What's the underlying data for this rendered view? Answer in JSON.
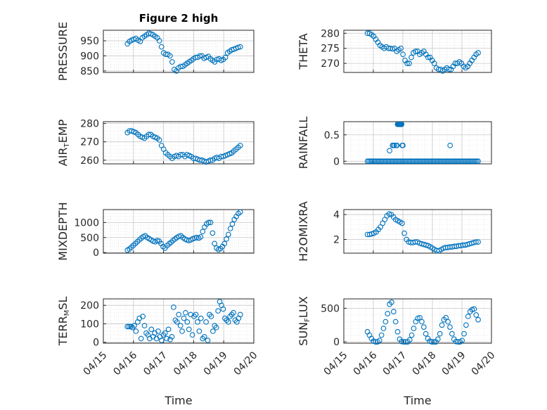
{
  "figure_title": "Figure 2 high",
  "colors": {
    "marker": "#0072bd",
    "axis": "#262626",
    "grid": "#c8c8c8",
    "background": "#ffffff"
  },
  "chart_data": [
    {
      "type": "scatter",
      "id": "pressure",
      "title": "Figure 2 high",
      "ylabel_parts": [
        "PRESSURE"
      ],
      "xlim": [
        "04/15",
        "04/20"
      ],
      "ylim": [
        845,
        985
      ],
      "yticks": [
        850,
        900,
        950
      ],
      "show_xticks": false,
      "xlabel": "",
      "grid": true,
      "x_start": 15.8,
      "x_end": 19.55,
      "y": [
        940,
        948,
        952,
        955,
        958,
        952,
        948,
        960,
        965,
        970,
        975,
        973,
        970,
        965,
        960,
        950,
        930,
        910,
        905,
        905,
        900,
        880,
        855,
        850,
        860,
        865,
        865,
        870,
        875,
        880,
        885,
        890,
        895,
        895,
        900,
        900,
        892,
        895,
        898,
        890,
        885,
        880,
        888,
        890,
        885,
        888,
        895,
        910,
        915,
        920,
        922,
        925,
        928,
        930
      ]
    },
    {
      "type": "scatter",
      "id": "theta",
      "title": "",
      "ylabel_parts": [
        "THETA"
      ],
      "xlim": [
        "04/15",
        "04/20"
      ],
      "ylim": [
        267,
        281
      ],
      "yticks": [
        270,
        275,
        280
      ],
      "show_xticks": false,
      "xlabel": "",
      "grid": true,
      "x_start": 15.8,
      "x_end": 19.55,
      "y": [
        280,
        280,
        279.5,
        279,
        278,
        277,
        276,
        275.5,
        275,
        275.5,
        275,
        275,
        274.8,
        275,
        274,
        274.5,
        275,
        273,
        271,
        270,
        270,
        272,
        273.5,
        274,
        274,
        273,
        273.5,
        274,
        273,
        272,
        272,
        271,
        270,
        268.5,
        268,
        268,
        267.5,
        268,
        268.5,
        268,
        268,
        269,
        270,
        270,
        270.5,
        270,
        269,
        268.5,
        269,
        270,
        271,
        272,
        273,
        273.5
      ]
    },
    {
      "type": "scatter",
      "id": "air_temp",
      "title": "",
      "ylabel_parts": [
        "AIR",
        "T",
        "EMP"
      ],
      "xlim": [
        "04/15",
        "04/20"
      ],
      "ylim": [
        258,
        281
      ],
      "yticks": [
        260,
        270,
        280
      ],
      "show_xticks": false,
      "xlabel": "",
      "grid": true,
      "x_start": 15.8,
      "x_end": 19.55,
      "y": [
        275,
        276,
        276,
        275.5,
        275,
        274,
        273,
        272.5,
        272,
        273,
        274,
        274,
        273,
        272.5,
        272,
        271,
        268,
        266,
        264,
        263,
        262,
        261,
        262,
        262.5,
        262,
        263,
        263,
        262,
        263,
        262.5,
        262,
        261,
        261,
        260.5,
        260,
        260,
        259.5,
        259,
        259.5,
        260,
        260,
        261,
        261.5,
        261,
        262,
        262,
        262.5,
        263,
        263.5,
        264,
        265,
        266,
        267,
        268
      ]
    },
    {
      "type": "scatter",
      "id": "rainfall",
      "title": "",
      "ylabel_parts": [
        "RAINFALL"
      ],
      "xlim": [
        "04/15",
        "04/20"
      ],
      "ylim": [
        -0.05,
        0.75
      ],
      "yticks": [
        0,
        0.5
      ],
      "show_xticks": false,
      "xlabel": "",
      "grid": true,
      "x_start": 15.8,
      "x_end": 19.55,
      "y": [
        0,
        0,
        0,
        0,
        0,
        0,
        0,
        0,
        0,
        0,
        0,
        0,
        0,
        0,
        0,
        0,
        0,
        0,
        0,
        0,
        0,
        0,
        0,
        0,
        0,
        0,
        0,
        0,
        0,
        0,
        0,
        0,
        0,
        0,
        0,
        0,
        0,
        0,
        0,
        0,
        0,
        0,
        0,
        0,
        0,
        0,
        0,
        0,
        0,
        0,
        0,
        0,
        0,
        0,
        0,
        0,
        0,
        0,
        0,
        0,
        0,
        0,
        0,
        0,
        0,
        0,
        0,
        0,
        0,
        0,
        0,
        0,
        0,
        0,
        0,
        0,
        0,
        0,
        0,
        0
      ],
      "extra_points": [
        [
          16.55,
          0.2
        ],
        [
          16.65,
          0.3
        ],
        [
          16.68,
          0.3
        ],
        [
          16.72,
          0.3
        ],
        [
          16.82,
          0.7
        ],
        [
          16.84,
          0.7
        ],
        [
          16.86,
          0.7
        ],
        [
          16.88,
          0.7
        ],
        [
          16.9,
          0.7
        ],
        [
          16.92,
          0.7
        ],
        [
          16.94,
          0.7
        ],
        [
          16.96,
          0.7
        ],
        [
          16.78,
          0.3
        ],
        [
          16.8,
          0.3
        ],
        [
          16.98,
          0.3
        ],
        [
          17.0,
          0.3
        ],
        [
          18.6,
          0.3
        ]
      ]
    },
    {
      "type": "scatter",
      "id": "mixdepth",
      "title": "",
      "ylabel_parts": [
        "MIXDEPTH"
      ],
      "xlim": [
        "04/15",
        "04/20"
      ],
      "ylim": [
        -20,
        1430
      ],
      "yticks": [
        0,
        500,
        1000
      ],
      "show_xticks": false,
      "xlabel": "",
      "grid": true,
      "x_start": 15.8,
      "x_end": 19.55,
      "y": [
        80,
        120,
        180,
        240,
        300,
        360,
        420,
        480,
        530,
        560,
        500,
        460,
        420,
        380,
        360,
        400,
        380,
        300,
        200,
        150,
        230,
        290,
        340,
        400,
        450,
        500,
        540,
        560,
        500,
        450,
        420,
        400,
        420,
        460,
        480,
        500,
        480,
        520,
        700,
        850,
        950,
        1000,
        1000,
        650,
        300,
        150,
        100,
        130,
        200,
        300,
        450,
        600,
        800,
        950,
        1100,
        1200,
        1300,
        1350
      ]
    },
    {
      "type": "scatter",
      "id": "h2omixra",
      "title": "",
      "ylabel_parts": [
        "H2OMIXRA"
      ],
      "xlim": [
        "04/15",
        "04/20"
      ],
      "ylim": [
        0.9,
        4.4
      ],
      "yticks": [
        2,
        4
      ],
      "show_xticks": false,
      "xlabel": "",
      "grid": true,
      "x_start": 15.8,
      "x_end": 19.55,
      "y": [
        2.4,
        2.4,
        2.45,
        2.5,
        2.6,
        2.8,
        3.0,
        3.3,
        3.6,
        3.9,
        4.05,
        4.0,
        3.8,
        3.6,
        3.5,
        3.4,
        3.3,
        2.5,
        2.0,
        1.8,
        1.75,
        1.75,
        1.8,
        1.8,
        1.7,
        1.65,
        1.6,
        1.55,
        1.5,
        1.4,
        1.3,
        1.2,
        1.1,
        1.1,
        1.2,
        1.3,
        1.35,
        1.35,
        1.4,
        1.4,
        1.45,
        1.45,
        1.5,
        1.5,
        1.55,
        1.55,
        1.6,
        1.65,
        1.7,
        1.75,
        1.8,
        1.8
      ]
    },
    {
      "type": "scatter",
      "id": "terr_msl",
      "title": "",
      "ylabel_parts": [
        "TERR",
        "M",
        "SL"
      ],
      "xlim": [
        "04/15",
        "04/20"
      ],
      "ylim": [
        -5,
        235
      ],
      "yticks": [
        0,
        100,
        200
      ],
      "show_xticks": true,
      "xlabel": "Time",
      "grid": true,
      "xticklabels": [
        "04/15",
        "04/16",
        "04/17",
        "04/18",
        "04/19",
        "04/20"
      ],
      "x_start": 15.8,
      "x_end": 19.55,
      "y": [
        85,
        85,
        85,
        80,
        90,
        60,
        110,
        130,
        20,
        140,
        90,
        50,
        40,
        20,
        70,
        30,
        50,
        20,
        60,
        30,
        10,
        40,
        50,
        20,
        70,
        15,
        30,
        190,
        120,
        110,
        150,
        90,
        60,
        130,
        160,
        110,
        70,
        150,
        40,
        140,
        150,
        110,
        60,
        130,
        20,
        30,
        110,
        10,
        150,
        140,
        60,
        90,
        80,
        170,
        220,
        200,
        180,
        130,
        120,
        110,
        140,
        150,
        160,
        120,
        110,
        130,
        150
      ]
    },
    {
      "type": "scatter",
      "id": "sun_flux",
      "title": "",
      "ylabel_parts": [
        "SUN",
        "F",
        "LUX"
      ],
      "xlim": [
        "04/15",
        "04/20"
      ],
      "ylim": [
        -20,
        640
      ],
      "yticks": [
        0,
        500
      ],
      "show_xticks": true,
      "xlabel": "Time",
      "grid": true,
      "xticklabels": [
        "04/15",
        "04/16",
        "04/17",
        "04/18",
        "04/19",
        "04/20"
      ],
      "x_start": 15.8,
      "x_end": 19.55,
      "y": [
        150,
        100,
        50,
        10,
        0,
        0,
        20,
        100,
        200,
        300,
        420,
        560,
        590,
        450,
        300,
        150,
        40,
        5,
        0,
        0,
        0,
        30,
        100,
        200,
        300,
        350,
        360,
        300,
        220,
        120,
        50,
        10,
        0,
        0,
        0,
        40,
        120,
        250,
        330,
        360,
        300,
        220,
        120,
        40,
        5,
        0,
        0,
        20,
        120,
        250,
        380,
        450,
        480,
        490,
        400,
        330
      ]
    }
  ]
}
